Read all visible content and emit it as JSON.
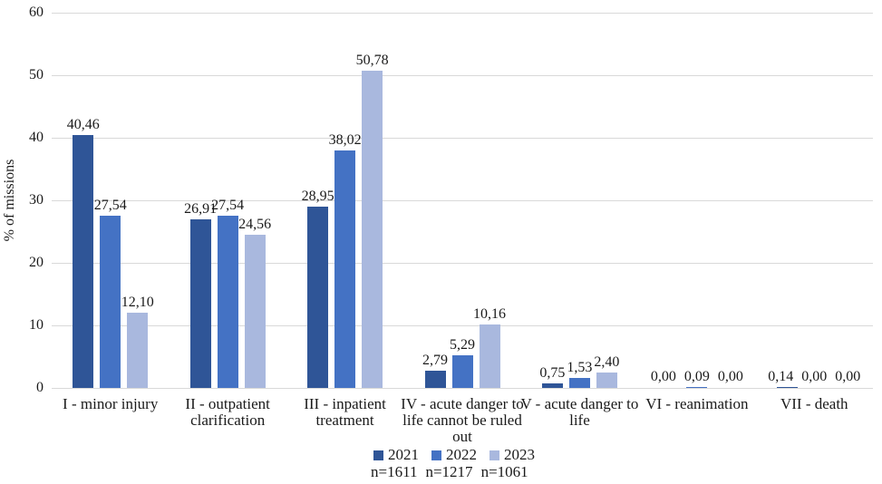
{
  "chart_data": {
    "type": "bar",
    "title": "",
    "ylabel": "% of missions",
    "xlabel": "",
    "ylim": [
      0,
      60
    ],
    "yticks": [
      0,
      10,
      20,
      30,
      40,
      50,
      60
    ],
    "grid": true,
    "grid_color": "#d9d9d9",
    "text_color": "#1a1a1a",
    "legend_position": "bottom",
    "categories": [
      "I - minor injury",
      "II - outpatient clarification",
      "III - inpatient treatment",
      "IV - acute danger to life cannot be ruled out",
      "V - acute danger to life",
      "VI - reanimation",
      "VII - death"
    ],
    "series": [
      {
        "name": "2021",
        "n_label": "n=1611",
        "color": "#2F5597",
        "values": [
          40.46,
          26.91,
          28.95,
          2.79,
          0.75,
          0.0,
          0.14
        ],
        "labels": [
          "40,46",
          "26,91",
          "28,95",
          "2,79",
          "0,75",
          "0,00",
          "0,14"
        ]
      },
      {
        "name": "2022",
        "n_label": "n=1217",
        "color": "#4472C4",
        "values": [
          27.54,
          27.54,
          38.02,
          5.29,
          1.53,
          0.09,
          0.0
        ],
        "labels": [
          "27,54",
          "27,54",
          "38,02",
          "5,29",
          "1,53",
          "0,09",
          "0,00"
        ]
      },
      {
        "name": "2023",
        "n_label": "n=1061",
        "color": "#A9B8DE",
        "values": [
          12.1,
          24.56,
          50.78,
          10.16,
          2.4,
          0.0,
          0.0
        ],
        "labels": [
          "12,10",
          "24,56",
          "50,78",
          "10,16",
          "2,40",
          "0,00",
          "0,00"
        ]
      }
    ]
  }
}
